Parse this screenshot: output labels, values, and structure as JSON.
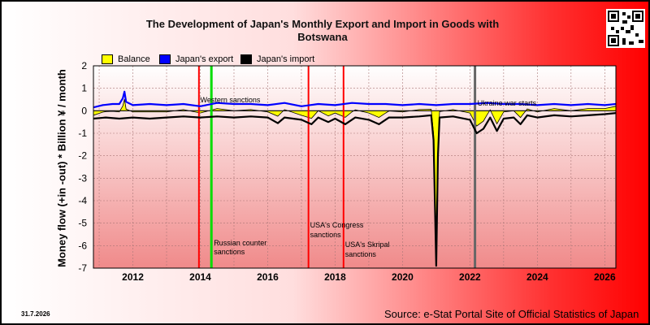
{
  "title_line1": "The Development of Japan's Monthly Export and Import in Goods with",
  "title_line2": "Botswana",
  "date_stamp": "31.7.2026",
  "source": "Source: e-Stat Portal Site of Official Statistics of Japan",
  "colors": {
    "balance": "#ffff00",
    "export": "#0000ff",
    "import": "#000000",
    "sanction_red": "#ff0000",
    "sanction_green": "#00dd00",
    "war_gray": "#666666"
  },
  "chart_data": {
    "type": "line",
    "title": "The Development of Japan's Monthly Export and Import in Goods with Botswana",
    "ylabel": "Money flow (+in -out) * Billion ¥ / month",
    "xlabel": "",
    "xlim": [
      2010.83,
      2026.33
    ],
    "ylim": [
      -7,
      2
    ],
    "x_ticks": [
      "2012",
      "2014",
      "2016",
      "2018",
      "2020",
      "2022",
      "2024",
      "2026"
    ],
    "x_tick_values": [
      2012,
      2014,
      2016,
      2018,
      2020,
      2022,
      2024,
      2026
    ],
    "y_ticks": [
      "2",
      "1",
      "0",
      "-1",
      "-2",
      "-3",
      "-4",
      "-5",
      "-6",
      "-7"
    ],
    "y_tick_values": [
      2,
      1,
      0,
      -1,
      -2,
      -3,
      -4,
      -5,
      -6,
      -7
    ],
    "grid": true,
    "legend_position": "top-left",
    "legend": [
      "Balance",
      "Japan's export",
      "Japan's import"
    ],
    "series": [
      {
        "name": "Japan's export",
        "points": [
          [
            2010.83,
            0.15
          ],
          [
            2011.1,
            0.25
          ],
          [
            2011.4,
            0.3
          ],
          [
            2011.6,
            0.3
          ],
          [
            2011.7,
            0.55
          ],
          [
            2011.75,
            0.85
          ],
          [
            2011.8,
            0.4
          ],
          [
            2012.0,
            0.25
          ],
          [
            2012.5,
            0.3
          ],
          [
            2013.0,
            0.25
          ],
          [
            2013.5,
            0.3
          ],
          [
            2014.0,
            0.2
          ],
          [
            2014.5,
            0.35
          ],
          [
            2015.0,
            0.3
          ],
          [
            2015.5,
            0.3
          ],
          [
            2016.0,
            0.25
          ],
          [
            2016.5,
            0.35
          ],
          [
            2017.0,
            0.2
          ],
          [
            2017.5,
            0.3
          ],
          [
            2018.0,
            0.25
          ],
          [
            2018.5,
            0.35
          ],
          [
            2019.0,
            0.3
          ],
          [
            2019.5,
            0.3
          ],
          [
            2020.0,
            0.25
          ],
          [
            2020.5,
            0.3
          ],
          [
            2021.0,
            0.25
          ],
          [
            2021.5,
            0.3
          ],
          [
            2022.0,
            0.3
          ],
          [
            2022.5,
            0.35
          ],
          [
            2023.0,
            0.3
          ],
          [
            2023.5,
            0.3
          ],
          [
            2024.0,
            0.25
          ],
          [
            2024.5,
            0.3
          ],
          [
            2025.0,
            0.25
          ],
          [
            2025.5,
            0.3
          ],
          [
            2026.0,
            0.25
          ],
          [
            2026.33,
            0.3
          ]
        ]
      },
      {
        "name": "Japan's import",
        "points": [
          [
            2010.83,
            -0.35
          ],
          [
            2011.2,
            -0.3
          ],
          [
            2011.6,
            -0.35
          ],
          [
            2012.0,
            -0.3
          ],
          [
            2012.5,
            -0.35
          ],
          [
            2013.0,
            -0.3
          ],
          [
            2013.5,
            -0.25
          ],
          [
            2014.0,
            -0.3
          ],
          [
            2014.5,
            -0.25
          ],
          [
            2015.0,
            -0.3
          ],
          [
            2015.5,
            -0.25
          ],
          [
            2016.0,
            -0.3
          ],
          [
            2016.3,
            -0.55
          ],
          [
            2016.5,
            -0.3
          ],
          [
            2017.0,
            -0.4
          ],
          [
            2017.3,
            -0.6
          ],
          [
            2017.5,
            -0.3
          ],
          [
            2017.8,
            -0.5
          ],
          [
            2018.0,
            -0.35
          ],
          [
            2018.3,
            -0.6
          ],
          [
            2018.6,
            -0.3
          ],
          [
            2019.0,
            -0.4
          ],
          [
            2019.3,
            -0.6
          ],
          [
            2019.6,
            -0.3
          ],
          [
            2020.0,
            -0.3
          ],
          [
            2020.5,
            -0.25
          ],
          [
            2020.85,
            -0.2
          ],
          [
            2020.92,
            -1.3
          ],
          [
            2021.0,
            -6.9
          ],
          [
            2021.05,
            -2.0
          ],
          [
            2021.1,
            -0.3
          ],
          [
            2021.5,
            -0.25
          ],
          [
            2022.0,
            -0.4
          ],
          [
            2022.2,
            -1.0
          ],
          [
            2022.4,
            -0.8
          ],
          [
            2022.6,
            -0.3
          ],
          [
            2022.8,
            -0.9
          ],
          [
            2023.0,
            -0.35
          ],
          [
            2023.3,
            -0.3
          ],
          [
            2023.5,
            -0.6
          ],
          [
            2023.7,
            -0.2
          ],
          [
            2024.0,
            -0.3
          ],
          [
            2024.5,
            -0.2
          ],
          [
            2025.0,
            -0.25
          ],
          [
            2025.5,
            -0.2
          ],
          [
            2026.0,
            -0.15
          ],
          [
            2026.33,
            -0.1
          ]
        ]
      }
    ],
    "annotations": [
      {
        "x": 2013.96,
        "label": "",
        "color": "red"
      },
      {
        "x": 2014.33,
        "label": "Russian counter sanctions",
        "color": "green"
      },
      {
        "x": 2014.0,
        "label": "Western sanctions",
        "color": "none"
      },
      {
        "x": 2017.21,
        "label": "USA's Congress sanctions",
        "color": "red"
      },
      {
        "x": 2018.25,
        "label": "USA's Skripal sanctions",
        "color": "red"
      },
      {
        "x": 2022.15,
        "label": "Ukraine war starts",
        "color": "gray"
      }
    ]
  }
}
